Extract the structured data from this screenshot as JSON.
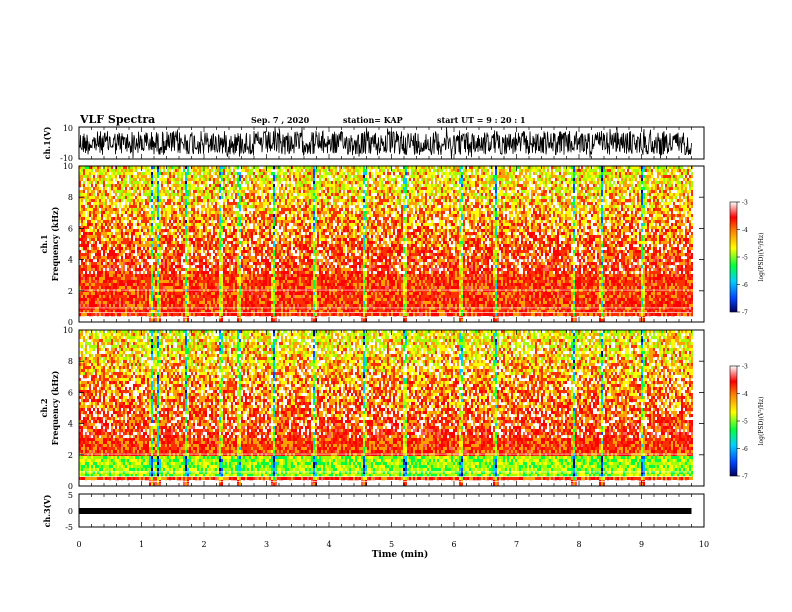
{
  "chart_data": {
    "type": "heatmap",
    "header": {
      "title": "VLF Spectra",
      "date": "Sep. 7 , 2020",
      "station": "station= KAP",
      "start": "start UT =  9 : 20 : 1"
    },
    "panels": [
      {
        "id": "ch1-waveform",
        "type": "line",
        "ylabel": "ch.1(V)",
        "ylim": [
          -10,
          10
        ],
        "yticks": [
          "10",
          "-10"
        ]
      },
      {
        "id": "ch1-spectrogram",
        "type": "heatmap",
        "ylabel_1": "ch.1",
        "ylabel_2": "Frequency  (kHz)",
        "ylim": [
          0,
          10
        ],
        "yticks": [
          "0",
          "2",
          "4",
          "6",
          "8",
          "10"
        ],
        "colorbar": {
          "label": "log(PSD)(V²/Hz)",
          "range": [
            -7,
            -3
          ],
          "ticks": [
            "-3",
            "-4",
            "-5",
            "-6",
            "-7"
          ]
        }
      },
      {
        "id": "ch2-spectrogram",
        "type": "heatmap",
        "ylabel_1": "ch.2",
        "ylabel_2": "Frequency  (kHz)",
        "ylim": [
          0,
          10
        ],
        "yticks": [
          "0",
          "2",
          "4",
          "6",
          "8",
          "10"
        ],
        "colorbar": {
          "label": "log(PSD)(V²/Hz)",
          "range": [
            -7,
            -3
          ],
          "ticks": [
            "-3",
            "-4",
            "-5",
            "-6",
            "-7"
          ]
        }
      },
      {
        "id": "ch3-waveform",
        "type": "line",
        "ylabel": "ch.3(V)",
        "ylim": [
          -5,
          5
        ],
        "yticks": [
          "5",
          "0",
          "-5"
        ]
      }
    ],
    "xaxis": {
      "label": "Time  (min)",
      "range": [
        0,
        10
      ],
      "ticks": [
        "0",
        "1",
        "2",
        "3",
        "4",
        "5",
        "6",
        "7",
        "8",
        "9",
        "10"
      ],
      "data_end_min": 9.8
    },
    "burst_times_min": [
      1.15,
      1.25,
      1.7,
      2.25,
      2.55,
      3.1,
      3.75,
      4.55,
      5.2,
      6.1,
      6.65,
      7.9,
      8.35,
      9.0
    ],
    "colors": {
      "low": "#000080",
      "mid_low": "#00c0ff",
      "mid": "#00ff40",
      "mid_high": "#ffff00",
      "high": "#ff0000",
      "top": "#ffffff"
    }
  }
}
